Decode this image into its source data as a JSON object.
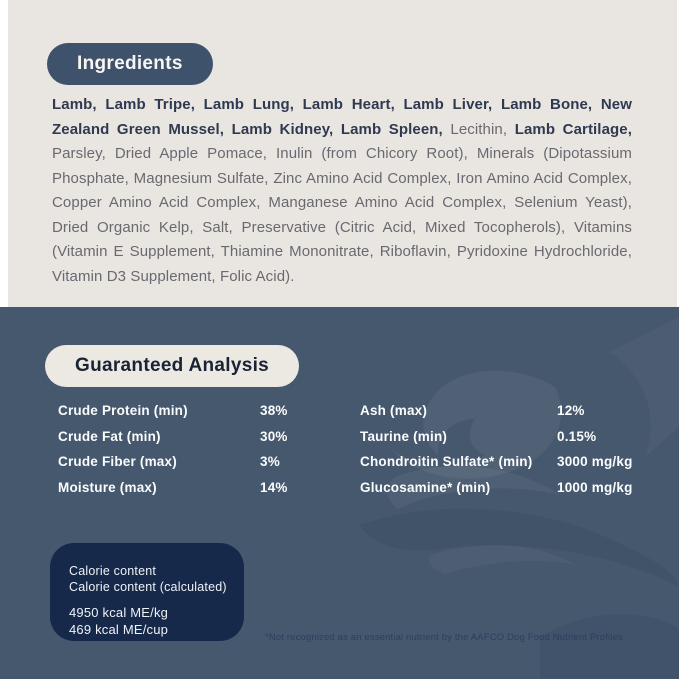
{
  "ingredients": {
    "header": "Ingredients",
    "segments": [
      {
        "bold": true,
        "text": "Lamb, Lamb Tripe, Lamb Lung, Lamb Heart, Lamb Liver, Lamb Bone, New Zealand Green Mussel, Lamb Kidney, Lamb Spleen, "
      },
      {
        "bold": false,
        "text": "Lecithin, "
      },
      {
        "bold": true,
        "text": "Lamb Cartilage, "
      },
      {
        "bold": false,
        "text": "Parsley, Dried Apple Pomace, Inulin (from Chicory Root), Minerals (Dipotassium Phosphate, Magnesium Sulfate, Zinc Amino Acid Complex, Iron Amino Acid Complex, Copper Amino Acid Complex, Manganese Amino Acid Complex, Selenium Yeast), Dried Organic Kelp, Salt, Preservative (Citric Acid, Mixed Tocopherols), Vitamins (Vitamin E Supplement, Thiamine Mononitrate, Riboflavin, Pyridoxine Hydrochloride, Vitamin D3 Supplement, Folic Acid)."
      }
    ]
  },
  "guaranteed_analysis": {
    "header": "Guaranteed Analysis",
    "left_rows": [
      {
        "label": "Crude Protein (min)",
        "value": "38%"
      },
      {
        "label": "Crude Fat (min)",
        "value": "30%"
      },
      {
        "label": "Crude Fiber (max)",
        "value": "3%"
      },
      {
        "label": "Moisture (max)",
        "value": "14%"
      }
    ],
    "right_rows": [
      {
        "label": "Ash (max)",
        "value": "12%"
      },
      {
        "label": "Taurine (min)",
        "value": "0.15%"
      },
      {
        "label": "Chondroitin Sulfate* (min)",
        "value": "3000 mg/kg"
      },
      {
        "label": "Glucosamine* (min)",
        "value": "1000 mg/kg"
      }
    ]
  },
  "calorie_box": {
    "lines": [
      "Calorie content",
      "Calorie content (calculated)"
    ],
    "values": [
      "4950 kcal ME/kg",
      "469 kcal ME/cup"
    ]
  },
  "footnote": "*Not recognized as an essential nutrient by the AAFCO Dog Food Nutrient Profiles",
  "colors": {
    "cream_background": "#e9e5e1",
    "blue_background": "#46586e",
    "dark_pill": "#3e526b",
    "light_pill": "#ece9e3",
    "calorie_box": "#16294b",
    "bold_ingredient_text": "#2f3a50",
    "regular_ingredient_text": "#6a6970",
    "table_text": "#fbfcfd",
    "footnote_text": "#2c3f5d"
  }
}
